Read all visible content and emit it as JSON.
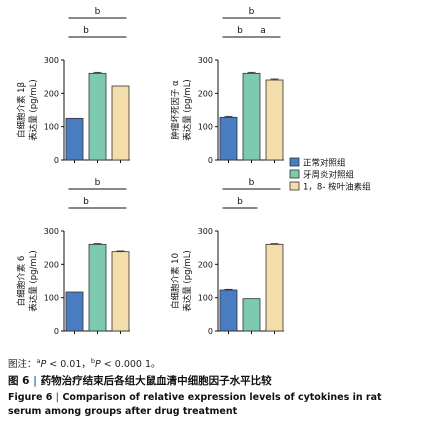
{
  "chart_data": [
    {
      "type": "bar",
      "categories": [
        "正常对照组",
        "牙周炎对照组",
        "1，8- 桉叶油素组"
      ],
      "values": [
        125,
        260,
        222
      ],
      "errors": [
        0,
        3,
        0
      ],
      "ylabel_line1": "白细胞介素 1β",
      "ylabel_line2": "表达量 (pg/mL)",
      "ylim": [
        0,
        300
      ],
      "yticks": [
        0,
        100,
        200,
        300
      ],
      "annotations": [
        {
          "from": 0,
          "to": 2,
          "label": "b"
        },
        {
          "from": 0,
          "to": 1,
          "label": "b"
        },
        {
          "from": 1,
          "to": 2,
          "label": ""
        }
      ]
    },
    {
      "type": "bar",
      "categories": [
        "正常对照组",
        "牙周炎对照组",
        "1，8- 桉叶油素组"
      ],
      "values": [
        128,
        260,
        240
      ],
      "errors": [
        3,
        3,
        3
      ],
      "ylabel_line1": "肿瘤坏死因子 α",
      "ylabel_line2": "表达量 (pg/mL)",
      "ylim": [
        0,
        300
      ],
      "yticks": [
        0,
        100,
        200,
        300
      ],
      "annotations": [
        {
          "from": 0,
          "to": 2,
          "label": "b"
        },
        {
          "from": 1,
          "to": 2,
          "label": "a"
        },
        {
          "from": 0,
          "to": 1,
          "label": "b"
        }
      ]
    },
    {
      "type": "bar",
      "categories": [
        "正常对照组",
        "牙周炎对照组",
        "1，8- 桉叶油素组"
      ],
      "values": [
        117,
        260,
        238
      ],
      "errors": [
        0,
        2,
        2
      ],
      "ylabel_line1": "白细胞介素 6",
      "ylabel_line2": "表达量 (pg/mL)",
      "ylim": [
        0,
        300
      ],
      "yticks": [
        0,
        100,
        200,
        300
      ],
      "annotations": [
        {
          "from": 0,
          "to": 2,
          "label": "b"
        },
        {
          "from": 0,
          "to": 1,
          "label": "b"
        },
        {
          "from": 1,
          "to": 2,
          "label": ""
        }
      ]
    },
    {
      "type": "bar",
      "categories": [
        "正常对照组",
        "牙周炎对照组",
        "1，8- 桉叶油素组"
      ],
      "values": [
        123,
        97,
        260
      ],
      "errors": [
        2,
        0,
        2
      ],
      "ylabel_line1": "白细胞介素 10",
      "ylabel_line2": "表达量 (pg/mL)",
      "ylim": [
        0,
        300
      ],
      "yticks": [
        0,
        100,
        200,
        300
      ],
      "annotations": [
        {
          "from": 0,
          "to": 2,
          "label": "b"
        },
        {
          "from": 0,
          "to": 1,
          "label": "b"
        }
      ]
    }
  ],
  "legend": {
    "placement": "right",
    "entries": [
      "正常对照组",
      "牙周炎对照组",
      "1，8- 桉叶油素组"
    ]
  },
  "colors": {
    "series": [
      "#4a7cc2",
      "#7ccab0",
      "#f3ddaa"
    ],
    "bar_stroke": "#333333",
    "axis": "#111111",
    "accent": "#1b6fb4"
  },
  "captions": {
    "note_prefix": "图注：",
    "note_sup_a": "a",
    "note_p1": "P",
    "note_t1": " < 0.01，",
    "note_sup_b": "b",
    "note_p2": "P",
    "note_t2": " < 0.000 1。",
    "fig_label": "图 6",
    "fig_sep": "  |  ",
    "fig_title": "药物治疗结束后各组大鼠血清中细胞因子水平比较",
    "fig_en_label": "Figure 6",
    "fig_en_sep": "  |  ",
    "fig_en_title": "Comparison of relative expression levels of cytokines in rat serum among groups after drug treatment"
  }
}
